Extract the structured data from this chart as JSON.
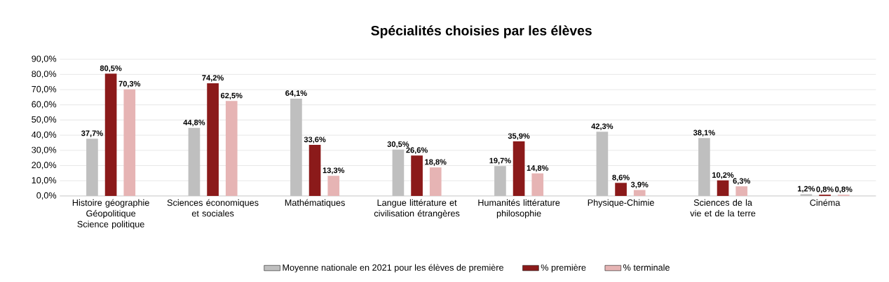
{
  "chart_data": {
    "type": "bar",
    "title": "Spécialités choisies par les élèves",
    "categories": [
      "Histoire géographie Géopolitique Science politique",
      "Sciences économiques et sociales",
      "Mathématiques",
      "Langue littérature et civilisation étrangères",
      "Humanités littérature philosophie",
      "Physique-Chimie",
      "Sciences de la vie et de la terre",
      "Cinéma"
    ],
    "series": [
      {
        "name": "Moyenne nationale en 2021 pour les élèves de première",
        "color": "#bfbfbf",
        "values": [
          37.7,
          44.8,
          64.1,
          30.5,
          19.7,
          42.3,
          38.1,
          1.2
        ],
        "value_labels": [
          "37,7%",
          "44,8%",
          "64,1%",
          "30,5%",
          "19,7%",
          "42,3%",
          "38,1%",
          "1,2%"
        ]
      },
      {
        "name": "% première",
        "color": "#8b1a1a",
        "values": [
          80.5,
          74.2,
          33.6,
          26.6,
          35.9,
          8.6,
          10.2,
          0.8
        ],
        "value_labels": [
          "80,5%",
          "74,2%",
          "33,6%",
          "26,6%",
          "35,9%",
          "8,6%",
          "10,2%",
          "0,8%"
        ]
      },
      {
        "name": "% terminale",
        "color": "#e6b4b4",
        "values": [
          70.3,
          62.5,
          13.3,
          18.8,
          14.8,
          3.9,
          6.3,
          0.8
        ],
        "value_labels": [
          "70,3%",
          "62,5%",
          "13,3%",
          "18,8%",
          "14,8%",
          "3,9%",
          "6,3%",
          "0,8%"
        ]
      }
    ],
    "ylim": [
      0,
      90
    ],
    "yticks": [
      {
        "value": 0,
        "label": "0,0%"
      },
      {
        "value": 10,
        "label": "10,0%"
      },
      {
        "value": 20,
        "label": "20,0%"
      },
      {
        "value": 30,
        "label": "30,0%"
      },
      {
        "value": 40,
        "label": "40,0%"
      },
      {
        "value": 50,
        "label": "50,0%"
      },
      {
        "value": 60,
        "label": "60,0%"
      },
      {
        "value": 70,
        "label": "70,0%"
      },
      {
        "value": 80,
        "label": "80,0%"
      },
      {
        "value": 90,
        "label": "90,0%"
      }
    ],
    "grid": "y",
    "legend": "bottom"
  }
}
